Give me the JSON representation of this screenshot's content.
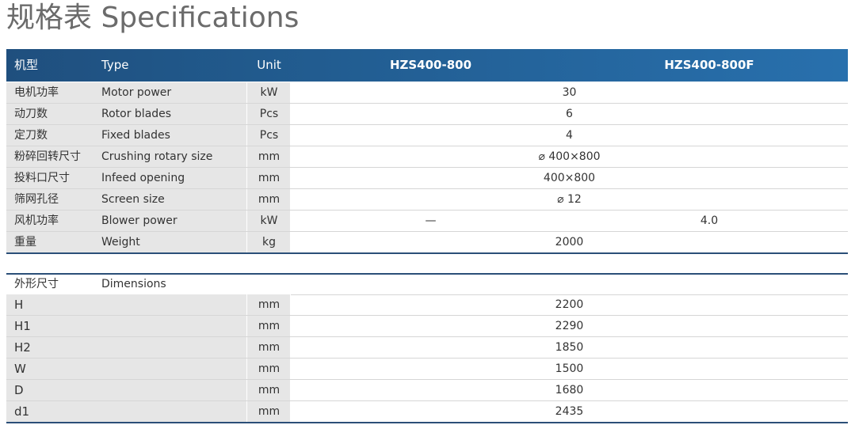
{
  "header": {
    "title": "规格表  Specifications"
  },
  "table": {
    "columns": [
      "机型",
      "Type",
      "Unit",
      "HZS400-800",
      "HZS400-800F"
    ],
    "rows": [
      [
        "电机功率",
        "Motor power",
        "kW",
        "30"
      ],
      [
        "动刀数",
        "Rotor blades",
        "Pcs",
        "6"
      ],
      [
        "定刀数",
        "Fixed blades",
        "Pcs",
        "4"
      ],
      [
        "粉碎回转尺寸",
        "Crushing rotary size",
        "mm",
        "⌀ 400×800"
      ],
      [
        "投料口尺寸",
        "Infeed opening",
        "mm",
        "400×800"
      ],
      [
        "筛网孔径",
        "Screen size",
        "mm",
        "⌀ 12"
      ],
      [
        "风机功率",
        "Blower power",
        "kW",
        "—",
        "4.0"
      ],
      [
        "重量",
        "Weight",
        "kg",
        "2000"
      ]
    ]
  },
  "dimensions": {
    "title": [
      "外形尺寸",
      "Dimensions"
    ],
    "rows": [
      [
        "H",
        "mm",
        "2200"
      ],
      [
        "H1",
        "mm",
        "2290"
      ],
      [
        "H2",
        "mm",
        "1850"
      ],
      [
        "W",
        "mm",
        "1500"
      ],
      [
        "D",
        "mm",
        "1680"
      ],
      [
        "d1",
        "mm",
        "2435"
      ]
    ]
  }
}
